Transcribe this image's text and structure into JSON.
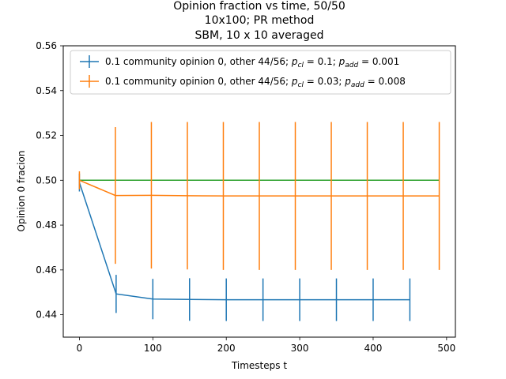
{
  "chart_data": {
    "type": "line",
    "title": [
      "Opinion fraction vs time, 50/50",
      "10x100; PR method",
      "SBM, 10 x 10 averaged"
    ],
    "xlabel": "Timesteps t",
    "ylabel": "Opinion 0 fracion",
    "xlim": [
      -22,
      512
    ],
    "ylim": [
      0.43,
      0.56
    ],
    "xticks": [
      0,
      100,
      200,
      300,
      400,
      500
    ],
    "yticks": [
      0.44,
      0.46,
      0.48,
      0.5,
      0.52,
      0.54,
      0.56
    ],
    "legend_position": "upper-left",
    "series": [
      {
        "name": "0.1 community opinion 0, other 44/56; p_cl = 0.1; p_add = 0.001",
        "color": "#1f77b4",
        "x": [
          0,
          50,
          100,
          150,
          200,
          250,
          300,
          350,
          400,
          450
        ],
        "y": [
          0.499,
          0.4493,
          0.447,
          0.4468,
          0.4467,
          0.4467,
          0.4467,
          0.4467,
          0.4467,
          0.4467
        ],
        "yerr": [
          0.004,
          0.0085,
          0.009,
          0.0095,
          0.0095,
          0.0095,
          0.0095,
          0.0095,
          0.0095,
          0.0095
        ]
      },
      {
        "name": "0.1 community opinion 0, other 44/56; p_cl = 0.03; p_add = 0.008",
        "color": "#ff7f0e",
        "x": [
          0,
          49,
          98,
          147,
          196,
          245,
          294,
          343,
          392,
          441,
          490
        ],
        "y": [
          0.5,
          0.4932,
          0.4933,
          0.4931,
          0.493,
          0.493,
          0.493,
          0.493,
          0.493,
          0.493,
          0.493
        ],
        "yerr": [
          0.004,
          0.0305,
          0.0327,
          0.0329,
          0.033,
          0.033,
          0.033,
          0.033,
          0.033,
          0.033,
          0.033
        ]
      },
      {
        "color": "#2ca02c",
        "x": [
          0,
          490
        ],
        "y": [
          0.5,
          0.5
        ]
      }
    ]
  },
  "legend": {
    "entries": [
      {
        "prefix": "0.1 community opinion 0, other 44/56; ",
        "p1_name": "cl",
        "p1_value": "0.1",
        "p2_name": "add",
        "p2_value": "0.001"
      },
      {
        "prefix": "0.1 community opinion 0, other 44/56; ",
        "p1_name": "cl",
        "p1_value": "0.03",
        "p2_name": "add",
        "p2_value": "0.008"
      }
    ]
  }
}
